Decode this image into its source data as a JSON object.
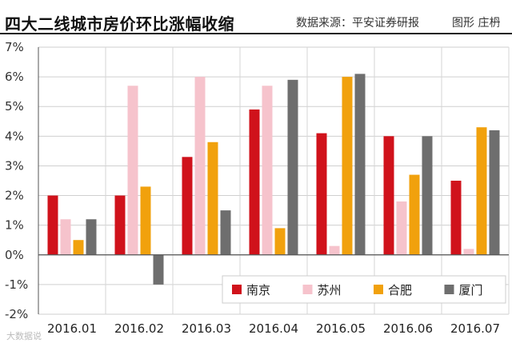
{
  "header": {
    "title": "四大二线城市房价环比涨幅收缩",
    "source": "数据来源：平安证券研报",
    "credit": "图形 庄枬"
  },
  "watermark": "大数据说",
  "chart_data": {
    "type": "bar",
    "title": "四大二线城市房价环比涨幅收缩",
    "xlabel": "",
    "ylabel": "",
    "ylim": [
      -2,
      7
    ],
    "yticks": [
      -2,
      -1,
      0,
      1,
      2,
      3,
      4,
      5,
      6,
      7
    ],
    "ytick_labels": [
      "-2%",
      "-1%",
      "0%",
      "1%",
      "2%",
      "3%",
      "4%",
      "5%",
      "6%",
      "7%"
    ],
    "grid": true,
    "legend_position": "bottom-right",
    "categories": [
      "2016.01",
      "2016.02",
      "2016.03",
      "2016.04",
      "2016.05",
      "2016.06",
      "2016.07"
    ],
    "series": [
      {
        "name": "南京",
        "color": "#d0121b",
        "values": [
          2.0,
          2.0,
          3.3,
          4.9,
          4.1,
          4.0,
          2.5
        ]
      },
      {
        "name": "苏州",
        "color": "#f6c3cc",
        "values": [
          1.2,
          5.7,
          6.0,
          5.7,
          0.3,
          1.8,
          0.2
        ]
      },
      {
        "name": "合肥",
        "color": "#f1a10d",
        "values": [
          0.5,
          2.3,
          3.8,
          0.9,
          6.0,
          2.7,
          4.3
        ]
      },
      {
        "name": "厦门",
        "color": "#6e6e6e",
        "values": [
          1.2,
          -1.0,
          1.5,
          5.9,
          6.1,
          4.0,
          4.2
        ]
      }
    ]
  }
}
